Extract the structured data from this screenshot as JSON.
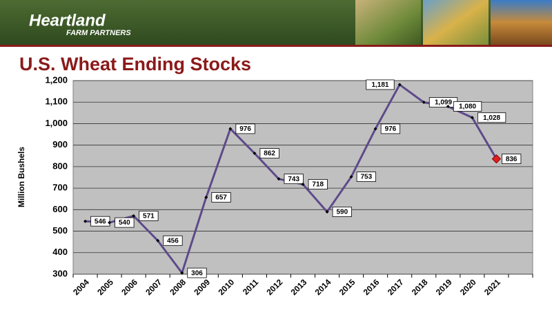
{
  "header": {
    "brand": "Heartland",
    "tagline": "FARM PARTNERS"
  },
  "chart_data": {
    "type": "line",
    "title": "U.S. Wheat Ending Stocks",
    "y_label": "Million Bushels",
    "categories": [
      "2004",
      "2005",
      "2006",
      "2007",
      "2008",
      "2009",
      "2010",
      "2011",
      "2012",
      "2013",
      "2014",
      "2015",
      "2016",
      "2017",
      "2018",
      "2019",
      "2020",
      "2021"
    ],
    "values": [
      546,
      540,
      571,
      456,
      306,
      657,
      976,
      862,
      743,
      718,
      590,
      753,
      976,
      1181,
      1099,
      1080,
      1028,
      836
    ],
    "value_labels": [
      "546",
      "540",
      "571",
      "456",
      "306",
      "657",
      "976",
      "862",
      "743",
      "718",
      "590",
      "753",
      "976",
      "1,181",
      "1,099",
      "1,080",
      "1,028",
      "836"
    ],
    "color": "#5e4a8a",
    "last_marker_color": "#e02020",
    "ylim": [
      300,
      1200
    ],
    "yticks": [
      300,
      400,
      500,
      600,
      700,
      800,
      900,
      {
        "value": 1000,
        "label": "1,000"
      },
      {
        "value": 1100,
        "label": "1,100"
      },
      {
        "value": 1200,
        "label": "1,200"
      }
    ],
    "grid": true
  }
}
